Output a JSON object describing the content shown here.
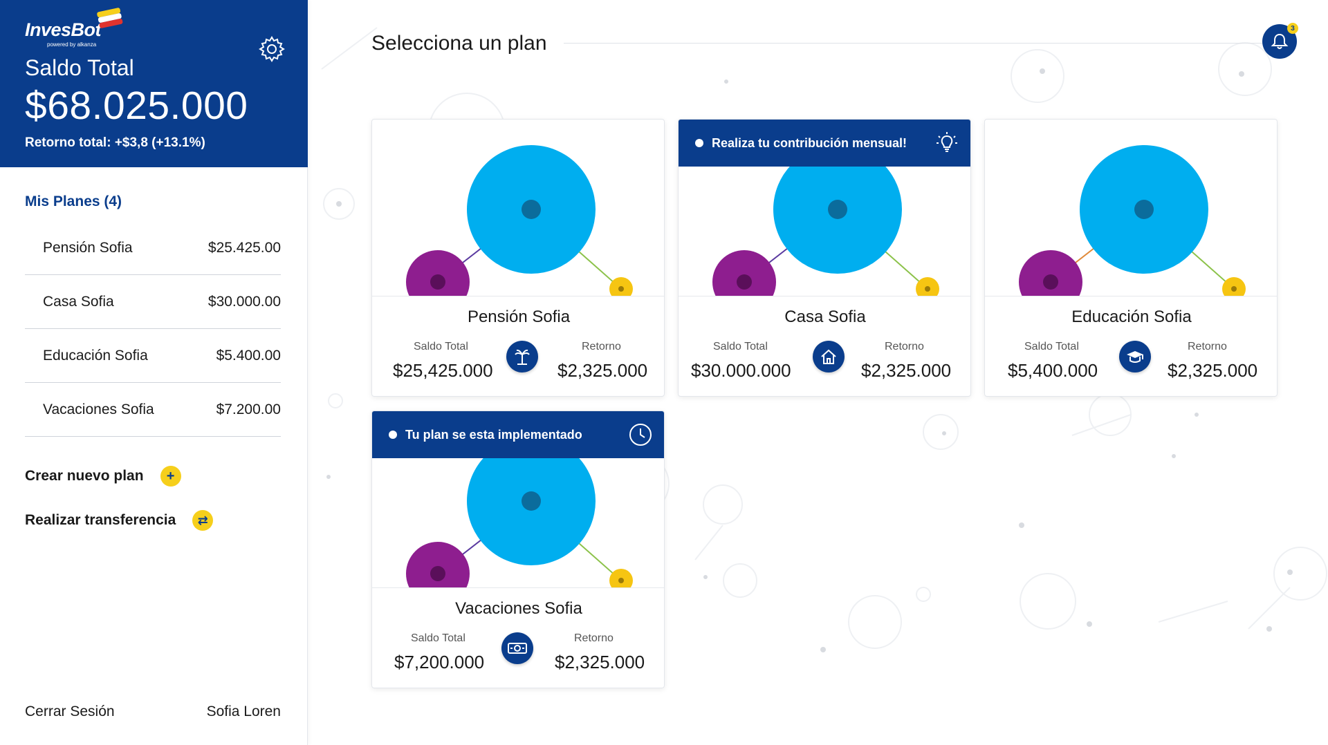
{
  "brand": {
    "name": "InvesBot",
    "tagline": "powered by alkanza"
  },
  "summary": {
    "saldo_label": "Saldo Total",
    "saldo_value": "$68.025.000",
    "retorno": "Retorno total: +$3,8 (+13.1%)"
  },
  "sidebar": {
    "mis_planes": "Mis Planes (4)",
    "plans": [
      {
        "name": "Pensión Sofia",
        "amount": "$25.425.00"
      },
      {
        "name": "Casa Sofia",
        "amount": "$30.000.00"
      },
      {
        "name": "Educación Sofia",
        "amount": "$5.400.00"
      },
      {
        "name": "Vacaciones Sofia",
        "amount": "$7.200.00"
      }
    ],
    "crear": "Crear nuevo plan",
    "transferir": "Realizar transferencia",
    "logout": "Cerrar Sesión",
    "user": "Sofia Loren"
  },
  "main": {
    "title": "Selecciona un plan",
    "notifications": "3"
  },
  "cards": [
    {
      "name": "Pensión Sofia",
      "saldo_label": "Saldo Total",
      "saldo": "$25,425.000",
      "retorno_label": "Retorno",
      "retorno": "$2,325.000",
      "icon": "palm-tree-icon",
      "banner": ""
    },
    {
      "name": "Casa Sofia",
      "saldo_label": "Saldo Total",
      "saldo": "$30.000.000",
      "retorno_label": "Retorno",
      "retorno": "$2,325.000",
      "icon": "house-icon",
      "banner": "Realiza tu contribución mensual!",
      "banner_icon": "lightbulb-icon"
    },
    {
      "name": "Educación Sofia",
      "saldo_label": "Saldo Total",
      "saldo": "$5,400.000",
      "retorno_label": "Retorno",
      "retorno": "$2,325.000",
      "icon": "graduation-cap-icon",
      "banner": ""
    },
    {
      "name": "Vacaciones Sofia",
      "saldo_label": "Saldo Total",
      "saldo": "$7,200.000",
      "retorno_label": "Retorno",
      "retorno": "$2,325.000",
      "icon": "money-icon",
      "banner": "Tu plan se esta implementado",
      "banner_icon": "clock-icon"
    }
  ],
  "colors": {
    "primary": "#0a3d8c",
    "accent_yellow": "#f6cf1b",
    "bubble_blue": "#00aeef",
    "bubble_purple": "#8e1e8f"
  }
}
